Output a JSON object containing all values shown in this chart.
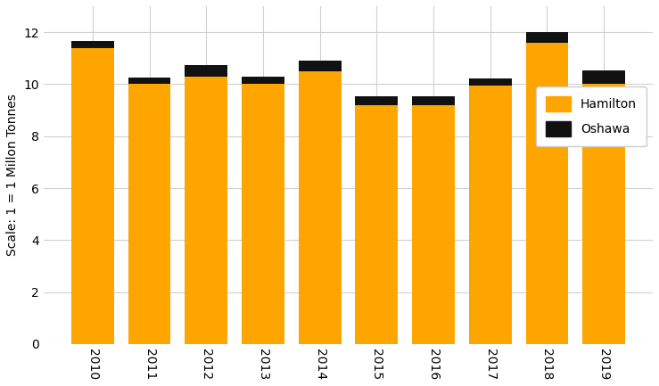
{
  "years": [
    "2010",
    "2011",
    "2012",
    "2013",
    "2014",
    "2015",
    "2016",
    "2017",
    "2018",
    "2019"
  ],
  "hamilton": [
    11.4,
    10.0,
    10.3,
    10.0,
    10.5,
    9.2,
    9.2,
    9.95,
    11.6,
    10.0
  ],
  "oshawa": [
    0.25,
    0.25,
    0.45,
    0.3,
    0.4,
    0.32,
    0.32,
    0.28,
    0.42,
    0.52
  ],
  "hamilton_color": "#FFA500",
  "oshawa_color": "#111111",
  "bar_width": 0.75,
  "ylim": [
    0,
    13
  ],
  "yticks": [
    0,
    2,
    4,
    6,
    8,
    10,
    12
  ],
  "ylabel": "Scale: 1 = 1 Millon Tonnes",
  "background_color": "#ffffff",
  "grid_color": "#d0d0d0",
  "legend_labels": [
    "Hamilton",
    "Oshawa"
  ],
  "legend_colors": [
    "#FFA500",
    "#111111"
  ],
  "tick_labelsize": 10,
  "ylabel_fontsize": 10
}
